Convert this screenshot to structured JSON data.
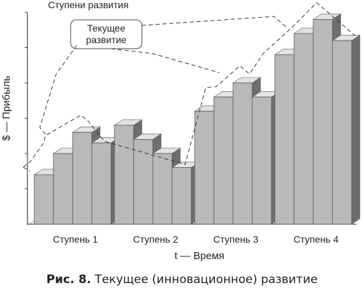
{
  "chart_data": {
    "type": "bar",
    "title": "Ступени развития",
    "xlabel": "t — Время",
    "ylabel": "$ — Прибыль",
    "categories": [
      "Ступень 1",
      "Ступень 2",
      "Ступень 3",
      "Ступень 4"
    ],
    "ylim": [
      0,
      6
    ],
    "grid": false,
    "values": [
      [
        1.4,
        2.0,
        2.6,
        2.3
      ],
      [
        2.8,
        2.4,
        2.0,
        1.6
      ],
      [
        3.2,
        3.6,
        4.0,
        3.6
      ],
      [
        4.8,
        5.4,
        5.8,
        5.2
      ]
    ],
    "annotations": [
      {
        "text": "Текущее развитие"
      }
    ],
    "colors": {
      "bar_front": "#b9b9b9",
      "bar_top": "#e2e2e2",
      "bar_side": "#6e6e6e",
      "bar_edge": "#555555",
      "axis": "#444444",
      "annotation_line": "#333333"
    }
  },
  "caption": {
    "label": "Рис. 8.",
    "text": "Текущее (инновационное) развитие"
  }
}
